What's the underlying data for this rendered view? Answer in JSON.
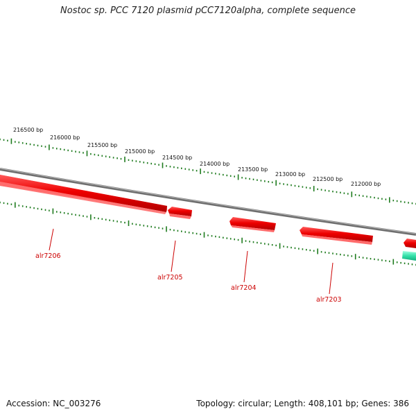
{
  "title": "Nostoc sp. PCC 7120 plasmid pCC7120alpha, complete sequence",
  "accession": "Accession: NC_003276",
  "summary": "Topology: circular; Length: 408,101 bp; Genes: 386",
  "colors": {
    "backbone": "#7f7f7f",
    "tick": "#1e7b1e",
    "gene_forward": "#ee0000",
    "gene_label": "#cc0000",
    "gene_other": "#33e0a8"
  },
  "scale_labels": [
    "216500 bp",
    "216000 bp",
    "215500 bp",
    "215000 bp",
    "214500 bp",
    "214000 bp",
    "213500 bp",
    "213000 bp",
    "212500 bp",
    "212000 bp"
  ],
  "genes": [
    {
      "name": "alr7206"
    },
    {
      "name": "alr7205"
    },
    {
      "name": "alr7204"
    },
    {
      "name": "alr7203"
    }
  ]
}
